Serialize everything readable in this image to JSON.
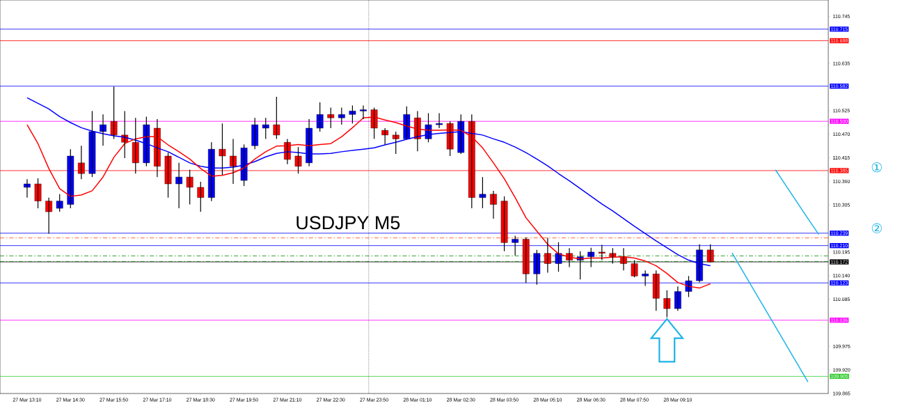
{
  "chart_data": {
    "type": "candlestick",
    "title": "USDJPY M5",
    "categories": [
      "27 Mar 13:10",
      null,
      null,
      null,
      "27 Mar 14:30",
      null,
      null,
      null,
      "27 Mar 15:50",
      null,
      null,
      null,
      "27 Mar 17:10",
      null,
      null,
      null,
      "27 Mar 18:30",
      null,
      null,
      null,
      "27 Mar 19:50",
      null,
      null,
      null,
      "27 Mar 21:10",
      null,
      null,
      null,
      "27 Mar 22:30",
      null,
      null,
      null,
      "27 Mar 23:50",
      null,
      null,
      null,
      "28 Mar 01:10",
      null,
      null,
      null,
      "28 Mar 02:30",
      null,
      null,
      null,
      "28 Mar 03:50",
      null,
      null,
      null,
      "28 Mar 05:10",
      null,
      null,
      null,
      "28 Mar 06:30",
      null,
      null,
      null,
      "28 Mar 07:50",
      null,
      null,
      null,
      "28 Mar 09:10",
      null,
      null,
      null,
      null,
      null,
      null,
      null,
      null,
      null,
      null,
      null,
      null,
      null
    ],
    "ohlc": [
      [
        110.346,
        110.365,
        110.322,
        110.354
      ],
      [
        110.354,
        110.367,
        110.297,
        110.314
      ],
      [
        110.314,
        110.322,
        110.238,
        110.289
      ],
      [
        110.297,
        110.33,
        110.289,
        110.314
      ],
      [
        110.306,
        110.435,
        110.297,
        110.419
      ],
      [
        110.403,
        110.443,
        110.365,
        110.378
      ],
      [
        110.378,
        110.524,
        110.37,
        110.476
      ],
      [
        110.476,
        110.516,
        110.443,
        110.492
      ],
      [
        110.5,
        110.581,
        110.459,
        110.468
      ],
      [
        110.468,
        110.524,
        110.414,
        110.451
      ],
      [
        110.451,
        110.508,
        110.378,
        110.403
      ],
      [
        110.403,
        110.511,
        110.395,
        110.492
      ],
      [
        110.484,
        110.505,
        110.37,
        110.395
      ],
      [
        110.419,
        110.427,
        110.322,
        110.354
      ],
      [
        110.354,
        110.403,
        110.297,
        110.37
      ],
      [
        110.37,
        110.387,
        110.306,
        110.346
      ],
      [
        110.346,
        110.359,
        110.289,
        110.322
      ],
      [
        110.322,
        110.451,
        110.314,
        110.435
      ],
      [
        110.435,
        110.495,
        110.375,
        110.419
      ],
      [
        110.419,
        110.459,
        110.354,
        110.395
      ],
      [
        110.362,
        110.446,
        110.349,
        110.438
      ],
      [
        110.443,
        110.508,
        110.435,
        110.492
      ],
      [
        110.484,
        110.508,
        110.459,
        110.492
      ],
      [
        110.492,
        110.557,
        110.459,
        110.468
      ],
      [
        110.451,
        110.459,
        110.4,
        110.411
      ],
      [
        110.419,
        110.44,
        110.378,
        110.395
      ],
      [
        110.403,
        110.505,
        110.395,
        110.484
      ],
      [
        110.484,
        110.544,
        110.476,
        110.516
      ],
      [
        110.516,
        110.532,
        110.484,
        110.508
      ],
      [
        110.508,
        110.532,
        110.492,
        110.516
      ],
      [
        110.516,
        110.537,
        110.495,
        110.524
      ],
      [
        110.524,
        110.537,
        110.505,
        110.527
      ],
      [
        110.527,
        110.532,
        110.459,
        110.484
      ],
      [
        110.479,
        110.484,
        110.446,
        110.468
      ],
      [
        110.468,
        110.476,
        110.424,
        110.459
      ],
      [
        110.459,
        110.535,
        110.459,
        110.516
      ],
      [
        110.508,
        110.524,
        110.43,
        110.459
      ],
      [
        110.459,
        110.519,
        110.451,
        110.492
      ],
      [
        110.492,
        110.519,
        110.484,
        110.495
      ],
      [
        110.495,
        110.5,
        110.419,
        110.435
      ],
      [
        110.427,
        110.516,
        110.424,
        110.5
      ],
      [
        110.5,
        110.516,
        110.297,
        110.322
      ],
      [
        110.322,
        110.37,
        110.297,
        110.33
      ],
      [
        110.33,
        110.338,
        110.273,
        110.306
      ],
      [
        110.314,
        110.325,
        110.197,
        110.217
      ],
      [
        110.217,
        110.233,
        110.187,
        110.225
      ],
      [
        110.225,
        110.229,
        110.123,
        110.144
      ],
      [
        110.144,
        110.2,
        110.119,
        110.192
      ],
      [
        110.192,
        110.228,
        110.147,
        110.168
      ],
      [
        110.168,
        110.218,
        110.149,
        110.192
      ],
      [
        110.192,
        110.204,
        110.16,
        110.176
      ],
      [
        110.176,
        110.197,
        110.131,
        110.184
      ],
      [
        110.184,
        110.205,
        110.16,
        110.195
      ],
      [
        110.195,
        110.212,
        110.176,
        110.192
      ],
      [
        110.192,
        110.204,
        110.168,
        110.184
      ],
      [
        110.184,
        110.204,
        110.152,
        110.168
      ],
      [
        110.168,
        110.176,
        110.136,
        110.139
      ],
      [
        110.139,
        110.152,
        110.116,
        110.144
      ],
      [
        110.144,
        110.152,
        110.058,
        110.087
      ],
      [
        110.087,
        110.106,
        110.043,
        110.063
      ],
      [
        110.063,
        110.115,
        110.058,
        110.103
      ],
      [
        110.103,
        110.139,
        110.09,
        110.128
      ],
      [
        110.128,
        110.213,
        110.124,
        110.2
      ],
      [
        110.2,
        110.213,
        110.171,
        110.172
      ],
      null,
      null,
      null,
      null,
      null,
      null,
      null,
      null,
      null,
      null
    ],
    "series": [
      {
        "type": "line",
        "color": "#0000ff",
        "values": [
          110.555,
          110.542,
          110.529,
          110.511,
          110.497,
          110.485,
          110.477,
          110.471,
          110.466,
          110.463,
          110.456,
          110.448,
          110.438,
          110.429,
          110.416,
          110.403,
          110.395,
          110.391,
          110.391,
          110.393,
          110.398,
          110.406,
          110.417,
          110.425,
          110.429,
          110.427,
          110.424,
          110.424,
          110.425,
          110.429,
          110.432,
          110.435,
          110.438,
          110.445,
          110.451,
          110.458,
          110.464,
          110.469,
          110.472,
          110.474,
          110.476,
          110.472,
          110.468,
          110.459,
          110.451,
          110.44,
          110.427,
          110.412,
          110.396,
          110.378,
          110.361,
          110.343,
          110.325,
          110.307,
          110.291,
          110.273,
          110.255,
          110.238,
          110.221,
          110.205,
          110.189,
          110.176,
          110.168,
          110.163,
          null,
          null,
          null,
          null,
          null,
          null,
          null,
          null,
          null,
          null
        ]
      },
      {
        "type": "line",
        "color": "#ff0000",
        "values": [
          110.492,
          110.448,
          110.39,
          110.343,
          110.325,
          110.328,
          110.338,
          110.37,
          110.416,
          110.448,
          110.459,
          110.464,
          110.464,
          110.445,
          110.429,
          110.412,
          110.39,
          110.372,
          110.374,
          110.38,
          110.391,
          110.412,
          110.429,
          110.442,
          110.443,
          110.446,
          110.443,
          110.446,
          110.448,
          110.464,
          110.485,
          110.508,
          110.51,
          110.503,
          110.497,
          110.489,
          110.482,
          110.479,
          110.479,
          110.48,
          110.479,
          110.464,
          110.438,
          110.403,
          110.366,
          110.322,
          110.275,
          110.244,
          110.213,
          110.191,
          110.183,
          110.179,
          110.181,
          110.181,
          110.183,
          110.184,
          110.181,
          110.174,
          110.163,
          110.145,
          110.124,
          110.115,
          110.111,
          110.121,
          null,
          null,
          null,
          null,
          null,
          null,
          null,
          null,
          null,
          null
        ]
      },
      {
        "type": "line",
        "color": "#1ab4e8",
        "values": [
          null,
          null,
          null,
          null,
          null,
          null,
          null,
          null,
          null,
          null,
          null,
          null,
          null,
          null,
          null,
          null,
          null,
          null,
          null,
          null,
          null,
          null,
          null,
          null,
          null,
          null,
          null,
          null,
          null,
          null,
          null,
          null,
          null,
          null,
          null,
          null,
          null,
          null,
          null,
          null,
          null,
          null,
          null,
          null,
          null,
          null,
          null,
          null,
          null,
          null,
          null,
          null,
          null,
          null,
          null,
          null,
          null,
          null,
          null,
          null,
          null,
          null,
          null,
          null,
          null,
          null,
          null,
          null,
          null,
          110.387,
          110.349,
          110.311,
          110.273,
          110.236
        ]
      },
      {
        "type": "line",
        "color": "#1ab4e8",
        "values": [
          null,
          null,
          null,
          null,
          null,
          null,
          null,
          null,
          null,
          null,
          null,
          null,
          null,
          null,
          null,
          null,
          null,
          null,
          null,
          null,
          null,
          null,
          null,
          null,
          null,
          null,
          null,
          null,
          null,
          null,
          null,
          null,
          null,
          null,
          null,
          null,
          null,
          null,
          null,
          null,
          null,
          null,
          null,
          null,
          null,
          null,
          null,
          null,
          null,
          null,
          null,
          null,
          null,
          null,
          null,
          null,
          null,
          null,
          null,
          null,
          null,
          null,
          null,
          null,
          null,
          110.193,
          110.15,
          110.107,
          110.064,
          110.021,
          109.978,
          109.935,
          109.892,
          null
        ]
      }
    ],
    "ylim": [
      109.865,
      110.783
    ],
    "yticks": [
      109.865,
      {
        "value": 109.92,
        "label": "109.920"
      },
      109.975,
      110.085,
      {
        "value": 110.14,
        "label": "110.140"
      },
      110.195,
      110.305,
      {
        "value": 110.36,
        "label": "110.360"
      },
      110.415,
      {
        "value": 110.47,
        "label": "110.470"
      },
      110.525,
      110.635,
      110.745
    ],
    "ref_lines": [
      {
        "axis": "y",
        "value": 110.715,
        "label": "110.715",
        "color": "#0000ff"
      },
      {
        "axis": "y",
        "value": 110.688,
        "label": "110.688",
        "color": "#ff0000"
      },
      {
        "axis": "y",
        "value": 110.582,
        "label": "110.582",
        "color": "#0000ff"
      },
      {
        "axis": "y",
        "value": 110.5,
        "label": "110.500",
        "color": "#ff00ff"
      },
      {
        "axis": "y",
        "value": 110.385,
        "label": "110.385",
        "color": "#ff0000"
      },
      {
        "axis": "y",
        "value": 110.239,
        "label": "110.239",
        "color": "#0000ff"
      },
      {
        "axis": "y",
        "value": 110.21,
        "label": "110.210",
        "color": "#0000ff"
      },
      {
        "axis": "y",
        "value": 110.172,
        "label": "110.172",
        "color": "#000000"
      },
      {
        "axis": "y",
        "value": 110.123,
        "label": "110.123",
        "color": "#0000ff"
      },
      {
        "axis": "y",
        "value": 110.036,
        "label": "110.036",
        "color": "#ff00ff"
      },
      {
        "axis": "y",
        "value": 109.905,
        "label": "109.905",
        "color": "#32cd32"
      },
      {
        "axis": "y",
        "value": 110.228,
        "color": "#ff4500",
        "line_style": "dashed"
      },
      {
        "axis": "y",
        "value": 110.186,
        "color": "#008000",
        "line_style": "dashed"
      },
      {
        "axis": "y",
        "value": 110.173,
        "color": "#008000",
        "line_style": "dashed"
      }
    ],
    "annotations": [
      "①",
      "②"
    ]
  }
}
